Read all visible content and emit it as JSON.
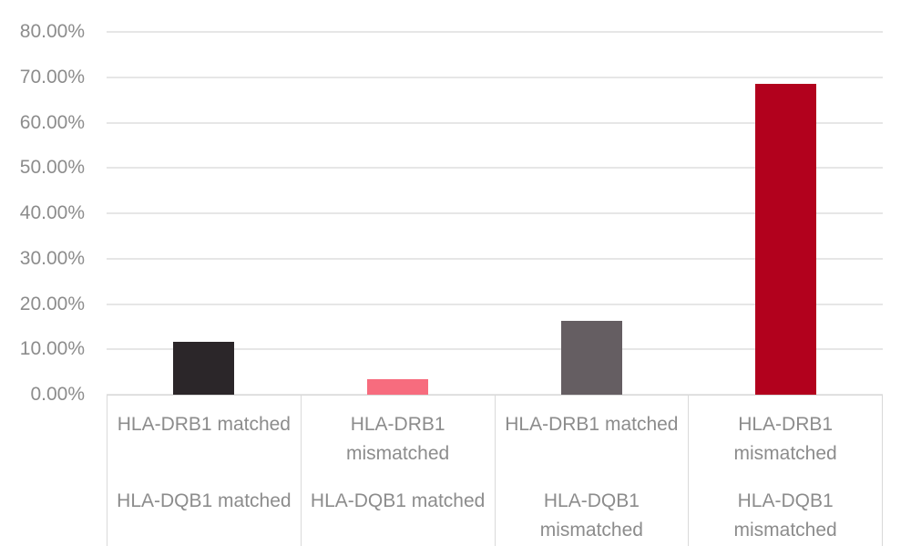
{
  "chart_data": {
    "type": "bar",
    "title": "",
    "xlabel": "",
    "ylabel": "",
    "categories": [
      {
        "drb1": "HLA-DRB1 matched",
        "dqb1": "HLA-DQB1 matched"
      },
      {
        "drb1": "HLA-DRB1 mismatched",
        "dqb1": "HLA-DQB1 matched"
      },
      {
        "drb1": "HLA-DRB1 matched",
        "dqb1": "HLA-DQB1 mismatched"
      },
      {
        "drb1": "HLA-DRB1 mismatched",
        "dqb1": "HLA-DQB1 mismatched"
      }
    ],
    "values": [
      11.7,
      3.4,
      16.3,
      68.6
    ],
    "value_unit": "percent",
    "bar_colors": [
      "#2b2629",
      "#f76c7e",
      "#655e62",
      "#b2011d"
    ],
    "yticks": [
      "0.00%",
      "10.00%",
      "20.00%",
      "30.00%",
      "40.00%",
      "50.00%",
      "60.00%",
      "70.00%",
      "80.00%"
    ],
    "ylim": [
      0,
      80
    ],
    "grid": true,
    "legend": false
  },
  "style": {
    "background": "#ffffff",
    "grid_color": "#e6e6e6",
    "axis_text_color": "#8c8c8c",
    "category_box_border_color": "#d9d9d9"
  }
}
